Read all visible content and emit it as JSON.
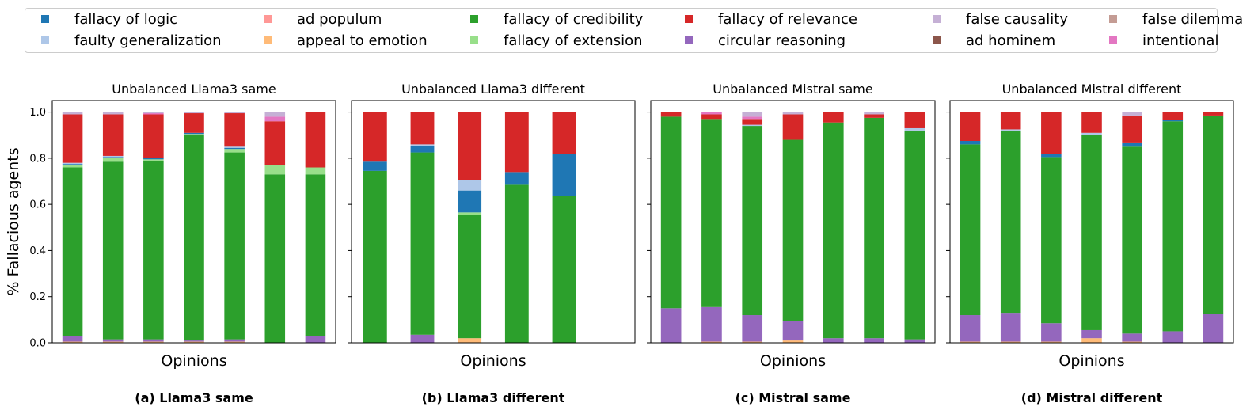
{
  "legend": [
    {
      "label": "fallacy of logic",
      "color": "#1f77b4"
    },
    {
      "label": "faulty generalization",
      "color": "#aec7e8"
    },
    {
      "label": "ad populum",
      "color": "#ff9896"
    },
    {
      "label": "appeal to emotion",
      "color": "#ffbb78"
    },
    {
      "label": "fallacy of credibility",
      "color": "#2ca02c"
    },
    {
      "label": "fallacy of extension",
      "color": "#98df8a"
    },
    {
      "label": "fallacy of relevance",
      "color": "#d62728"
    },
    {
      "label": "circular reasoning",
      "color": "#9467bd"
    },
    {
      "label": "false causality",
      "color": "#c5b0d5"
    },
    {
      "label": "ad hominem",
      "color": "#8c564b"
    },
    {
      "label": "false dilemma",
      "color": "#c49c94"
    },
    {
      "label": "intentional",
      "color": "#e377c2"
    }
  ],
  "ylabel": "% Fallacious agents",
  "chart_data": [
    {
      "type": "bar",
      "stacked": true,
      "title": "Unbalanced Llama3 same",
      "xlabel": "Opinions",
      "caption": "(a) Llama3 same",
      "ylim": [
        0,
        1.05
      ],
      "yticks": [
        "0.0",
        "0.2",
        "0.4",
        "0.6",
        "0.8",
        "1.0"
      ],
      "num_slots": 7,
      "stack_order": [
        "appeal to emotion",
        "circular reasoning",
        "fallacy of credibility",
        "fallacy of extension",
        "fallacy of logic",
        "faulty generalization",
        "fallacy of relevance",
        "intentional",
        "false causality"
      ],
      "bars": [
        {
          "appeal to emotion": 0.005,
          "circular reasoning": 0.025,
          "fallacy of credibility": 0.73,
          "fallacy of extension": 0.01,
          "fallacy of logic": 0.005,
          "faulty generalization": 0.005,
          "fallacy of relevance": 0.21,
          "false causality": 0.01
        },
        {
          "appeal to emotion": 0.005,
          "circular reasoning": 0.01,
          "fallacy of credibility": 0.77,
          "fallacy of extension": 0.015,
          "fallacy of logic": 0.005,
          "faulty generalization": 0.005,
          "fallacy of relevance": 0.18,
          "false causality": 0.01
        },
        {
          "appeal to emotion": 0.005,
          "circular reasoning": 0.01,
          "fallacy of credibility": 0.775,
          "fallacy of extension": 0.005,
          "fallacy of logic": 0.005,
          "fallacy of relevance": 0.19,
          "intentional": 0.005,
          "false causality": 0.005
        },
        {
          "appeal to emotion": 0.005,
          "circular reasoning": 0.005,
          "fallacy of credibility": 0.89,
          "fallacy of extension": 0.005,
          "fallacy of logic": 0.005,
          "fallacy of relevance": 0.085,
          "false causality": 0.005
        },
        {
          "appeal to emotion": 0.005,
          "circular reasoning": 0.01,
          "fallacy of credibility": 0.81,
          "fallacy of extension": 0.015,
          "fallacy of logic": 0.005,
          "faulty generalization": 0.005,
          "fallacy of relevance": 0.145,
          "false causality": 0.005
        },
        {
          "fallacy of credibility": 0.73,
          "fallacy of extension": 0.04,
          "fallacy of relevance": 0.19,
          "intentional": 0.02,
          "false causality": 0.02
        },
        {
          "circular reasoning": 0.03,
          "fallacy of credibility": 0.7,
          "fallacy of extension": 0.03,
          "fallacy of relevance": 0.24
        }
      ]
    },
    {
      "type": "bar",
      "stacked": true,
      "title": "Unbalanced Llama3 different",
      "xlabel": "Opinions",
      "caption": "(b) Llama3 different",
      "ylim": [
        0,
        1.05
      ],
      "yticks": [
        "0.0",
        "0.2",
        "0.4",
        "0.6",
        "0.8",
        "1.0"
      ],
      "num_slots": 6,
      "stack_order": [
        "appeal to emotion",
        "circular reasoning",
        "fallacy of credibility",
        "fallacy of extension",
        "fallacy of logic",
        "faulty generalization",
        "fallacy of relevance",
        "intentional",
        "false causality"
      ],
      "bars": [
        {
          "fallacy of credibility": 0.745,
          "fallacy of logic": 0.04,
          "fallacy of relevance": 0.215
        },
        {
          "circular reasoning": 0.035,
          "fallacy of credibility": 0.79,
          "fallacy of logic": 0.03,
          "fallacy of relevance": 0.14,
          "faulty generalization": 0.005
        },
        {
          "appeal to emotion": 0.02,
          "fallacy of credibility": 0.535,
          "fallacy of extension": 0.01,
          "fallacy of logic": 0.095,
          "fallacy of relevance": 0.295,
          "faulty generalization": 0.045
        },
        {
          "fallacy of credibility": 0.685,
          "fallacy of logic": 0.055,
          "fallacy of relevance": 0.26
        },
        {
          "fallacy of credibility": 0.635,
          "fallacy of logic": 0.185,
          "fallacy of relevance": 0.18
        }
      ]
    },
    {
      "type": "bar",
      "stacked": true,
      "title": "Unbalanced Mistral same",
      "xlabel": "Opinions",
      "caption": "(c) Mistral same",
      "ylim": [
        0,
        1.05
      ],
      "yticks": [
        "0.0",
        "0.2",
        "0.4",
        "0.6",
        "0.8",
        "1.0"
      ],
      "num_slots": 7,
      "stack_order": [
        "appeal to emotion",
        "circular reasoning",
        "fallacy of credibility",
        "fallacy of extension",
        "fallacy of logic",
        "faulty generalization",
        "fallacy of relevance",
        "intentional",
        "false causality"
      ],
      "bars": [
        {
          "circular reasoning": 0.15,
          "fallacy of credibility": 0.83,
          "fallacy of relevance": 0.02
        },
        {
          "appeal to emotion": 0.005,
          "circular reasoning": 0.15,
          "fallacy of credibility": 0.815,
          "fallacy of relevance": 0.02,
          "intentional": 0.01
        },
        {
          "appeal to emotion": 0.005,
          "circular reasoning": 0.115,
          "fallacy of credibility": 0.82,
          "fallacy of relevance": 0.025,
          "false causality": 0.02,
          "intentional": 0.01,
          "faulty generalization": 0.005
        },
        {
          "appeal to emotion": 0.01,
          "circular reasoning": 0.085,
          "fallacy of credibility": 0.785,
          "fallacy of relevance": 0.11,
          "false causality": 0.01
        },
        {
          "circular reasoning": 0.02,
          "fallacy of credibility": 0.935,
          "fallacy of relevance": 0.045
        },
        {
          "circular reasoning": 0.02,
          "fallacy of credibility": 0.955,
          "fallacy of relevance": 0.015,
          "false causality": 0.01
        },
        {
          "circular reasoning": 0.015,
          "fallacy of credibility": 0.905,
          "fallacy of relevance": 0.07,
          "faulty generalization": 0.01
        }
      ]
    },
    {
      "type": "bar",
      "stacked": true,
      "title": "Unbalanced Mistral different",
      "xlabel": "Opinions",
      "caption": "(d) Mistral different",
      "ylim": [
        0,
        1.05
      ],
      "yticks": [
        "0.0",
        "0.2",
        "0.4",
        "0.6",
        "0.8",
        "1.0"
      ],
      "num_slots": 7,
      "stack_order": [
        "appeal to emotion",
        "circular reasoning",
        "fallacy of credibility",
        "fallacy of extension",
        "fallacy of logic",
        "faulty generalization",
        "fallacy of relevance",
        "intentional",
        "false causality"
      ],
      "bars": [
        {
          "appeal to emotion": 0.005,
          "circular reasoning": 0.115,
          "fallacy of credibility": 0.74,
          "fallacy of logic": 0.015,
          "fallacy of relevance": 0.125
        },
        {
          "appeal to emotion": 0.005,
          "circular reasoning": 0.125,
          "fallacy of credibility": 0.79,
          "fallacy of relevance": 0.075,
          "faulty generalization": 0.005
        },
        {
          "appeal to emotion": 0.005,
          "circular reasoning": 0.08,
          "fallacy of credibility": 0.72,
          "fallacy of logic": 0.015,
          "fallacy of relevance": 0.18
        },
        {
          "appeal to emotion": 0.02,
          "circular reasoning": 0.035,
          "fallacy of credibility": 0.845,
          "fallacy of relevance": 0.09,
          "faulty generalization": 0.01
        },
        {
          "appeal to emotion": 0.005,
          "circular reasoning": 0.035,
          "fallacy of credibility": 0.81,
          "fallacy of logic": 0.015,
          "fallacy of relevance": 0.12,
          "false causality": 0.015
        },
        {
          "circular reasoning": 0.05,
          "fallacy of credibility": 0.91,
          "fallacy of logic": 0.005,
          "fallacy of relevance": 0.035
        },
        {
          "circular reasoning": 0.125,
          "fallacy of credibility": 0.86,
          "fallacy of relevance": 0.015
        }
      ]
    }
  ]
}
